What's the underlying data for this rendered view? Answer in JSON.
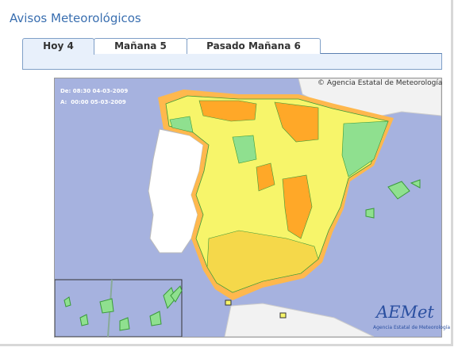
{
  "header": {
    "title": "Avisos Meteorológicos"
  },
  "tabs": [
    "Hoy 4",
    "Mañana 5",
    "Pasado Mañana 6"
  ],
  "map": {
    "valid_from": "De: 08:30 04-03-2009",
    "valid_to": "A:  00:00 05-03-2009",
    "copyright": "© Agencia Estatal de Meteorología",
    "logo": {
      "name": "AEMet",
      "caption": "Agencia Estatal de Meteorología"
    }
  }
}
